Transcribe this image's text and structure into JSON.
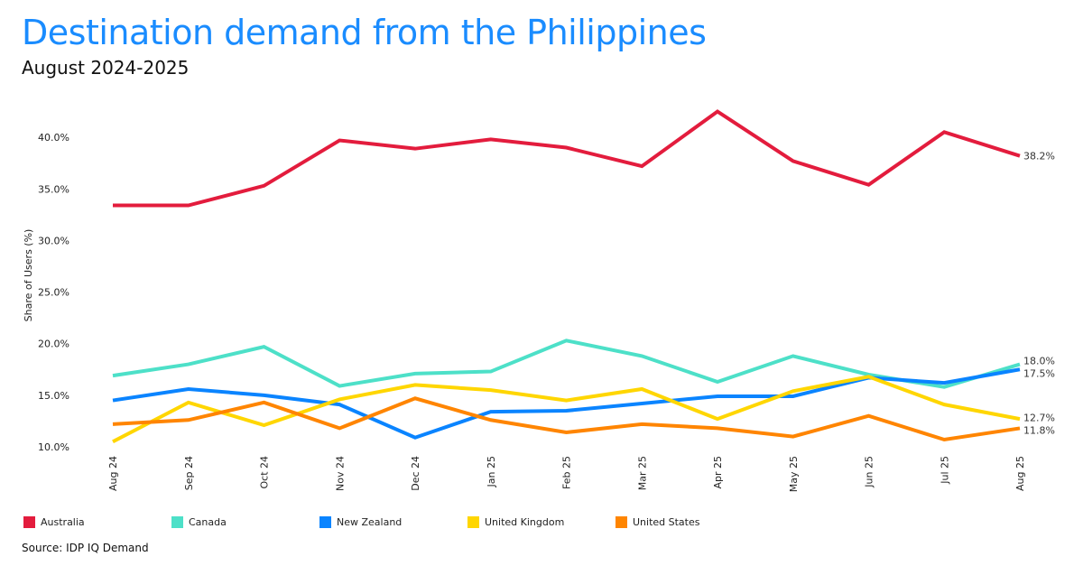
{
  "title": "Destination demand from the Philippines",
  "subtitle": "August 2024-2025",
  "source": "Source: IDP IQ Demand",
  "chart_data": {
    "type": "line",
    "ylabel": "Share of Users (%)",
    "xlabel": "",
    "ylim": [
      10,
      42.5
    ],
    "yticks": [
      10,
      15,
      20,
      25,
      30,
      35,
      40
    ],
    "ytick_labels": [
      "10.0%",
      "15.0%",
      "20.0%",
      "25.0%",
      "30.0%",
      "35.0%",
      "40.0%"
    ],
    "categories": [
      "Aug 24",
      "Sep 24",
      "Oct 24",
      "Nov 24",
      "Dec 24",
      "Jan 25",
      "Feb 25",
      "Mar 25",
      "Apr 25",
      "May 25",
      "Jun 25",
      "Jul 25",
      "Aug 25"
    ],
    "legend_position": "bottom",
    "series": [
      {
        "name": "Australia",
        "color": "#e31c3d",
        "end_label": "38.2%",
        "values": [
          33.4,
          33.4,
          35.3,
          39.7,
          38.9,
          39.8,
          39.0,
          37.2,
          42.5,
          37.7,
          35.4,
          40.5,
          38.2
        ]
      },
      {
        "name": "Canada",
        "color": "#4de0c8",
        "end_label": "18.0%",
        "values": [
          16.9,
          18.0,
          19.7,
          15.9,
          17.1,
          17.3,
          20.3,
          18.8,
          16.3,
          18.8,
          17.0,
          15.8,
          18.0
        ]
      },
      {
        "name": "New Zealand",
        "color": "#0a84ff",
        "end_label": "17.5%",
        "values": [
          14.5,
          15.6,
          15.0,
          14.1,
          10.9,
          13.4,
          13.5,
          14.2,
          14.9,
          14.9,
          16.7,
          16.2,
          17.5
        ]
      },
      {
        "name": "United Kingdom",
        "color": "#ffd600",
        "end_label": "12.7%",
        "values": [
          10.5,
          14.3,
          12.1,
          14.6,
          16.0,
          15.5,
          14.5,
          15.6,
          12.7,
          15.4,
          16.8,
          14.1,
          12.7
        ]
      },
      {
        "name": "United States",
        "color": "#ff8500",
        "end_label": "11.8%",
        "values": [
          12.2,
          12.6,
          14.3,
          11.8,
          14.7,
          12.6,
          11.4,
          12.2,
          11.8,
          11.0,
          13.0,
          10.7,
          11.8
        ]
      }
    ]
  }
}
